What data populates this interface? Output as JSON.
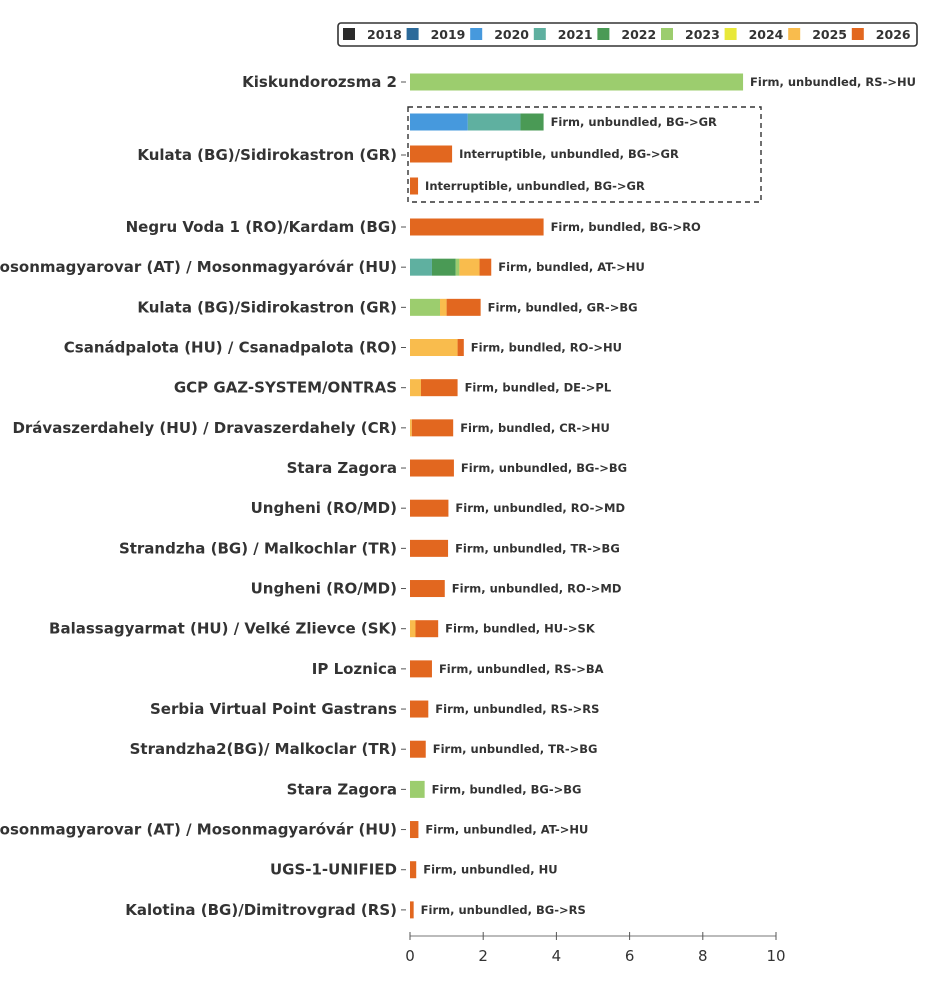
{
  "chart_data": {
    "type": "bar",
    "orientation": "horizontal",
    "stacked": true,
    "xlim": [
      0,
      10
    ],
    "x_ticks": [
      0,
      2,
      4,
      6,
      8,
      10
    ],
    "legend": {
      "placement": "top-right",
      "entries": [
        {
          "name": "2018",
          "color": "#2b2b2b"
        },
        {
          "name": "2019",
          "color": "#2c6a9a"
        },
        {
          "name": "2020",
          "color": "#4699dd"
        },
        {
          "name": "2021",
          "color": "#5fb0a0"
        },
        {
          "name": "2022",
          "color": "#4a9a55"
        },
        {
          "name": "2023",
          "color": "#9ccd6e"
        },
        {
          "name": "2024",
          "color": "#e8e83a"
        },
        {
          "name": "2025",
          "color": "#f9bc4d"
        },
        {
          "name": "2026",
          "color": "#e2671f"
        }
      ]
    },
    "categories": [
      {
        "label": "Kiskundorozsma 2",
        "bars": [
          {
            "label": "Firm, unbundled, RS->HU",
            "segments": [
              {
                "year": "2023",
                "value": 9.1
              }
            ]
          }
        ]
      },
      {
        "label": "Kulata (BG)/Sidirokastron (GR)",
        "boxed": true,
        "bars": [
          {
            "label": "Firm, unbundled, BG->GR",
            "segments": [
              {
                "year": "2020",
                "value": 1.58
              },
              {
                "year": "2021",
                "value": 1.44
              },
              {
                "year": "2022",
                "value": 0.63
              }
            ]
          },
          {
            "label": "Interruptible, unbundled, BG->GR",
            "segments": [
              {
                "year": "2026",
                "value": 1.15
              }
            ]
          },
          {
            "label": "Interruptible, unbundled, BG->GR",
            "segments": [
              {
                "year": "2026",
                "value": 0.22
              }
            ]
          }
        ]
      },
      {
        "label": "Negru Voda 1 (RO)/Kardam (BG)",
        "bars": [
          {
            "label": "Firm, bundled, BG->RO",
            "segments": [
              {
                "year": "2026",
                "value": 3.65
              }
            ]
          }
        ]
      },
      {
        "label": "Mosonmagyarovar (AT) / Mosonmagyaróvár (HU)",
        "bars": [
          {
            "label": "Firm, bundled, AT->HU",
            "segments": [
              {
                "year": "2021",
                "value": 0.6
              },
              {
                "year": "2022",
                "value": 0.65
              },
              {
                "year": "2023",
                "value": 0.1
              },
              {
                "year": "2025",
                "value": 0.55
              },
              {
                "year": "2026",
                "value": 0.32
              }
            ]
          }
        ]
      },
      {
        "label": "Kulata (BG)/Sidirokastron (GR)",
        "bars": [
          {
            "label": "Firm, bundled, GR->BG",
            "segments": [
              {
                "year": "2023",
                "value": 0.82
              },
              {
                "year": "2025",
                "value": 0.18
              },
              {
                "year": "2026",
                "value": 0.93
              }
            ]
          }
        ]
      },
      {
        "label": "Csanádpalota (HU) / Csanadpalota (RO)",
        "bars": [
          {
            "label": "Firm, bundled, RO->HU",
            "segments": [
              {
                "year": "2025",
                "value": 1.3
              },
              {
                "year": "2026",
                "value": 0.17
              }
            ]
          }
        ]
      },
      {
        "label": "GCP GAZ-SYSTEM/ONTRAS",
        "bars": [
          {
            "label": "Firm, bundled, DE->PL",
            "segments": [
              {
                "year": "2025",
                "value": 0.3
              },
              {
                "year": "2026",
                "value": 1.0
              }
            ]
          }
        ]
      },
      {
        "label": "Drávaszerdahely (HU) / Dravaszerdahely (CR)",
        "bars": [
          {
            "label": "Firm, bundled, CR->HU",
            "segments": [
              {
                "year": "2025",
                "value": 0.05
              },
              {
                "year": "2026",
                "value": 1.13
              }
            ]
          }
        ]
      },
      {
        "label": "Stara Zagora",
        "bars": [
          {
            "label": "Firm, unbundled, BG->BG",
            "segments": [
              {
                "year": "2026",
                "value": 1.2
              }
            ]
          }
        ]
      },
      {
        "label": "Ungheni (RO/MD)",
        "bars": [
          {
            "label": "Firm, unbundled, RO->MD",
            "segments": [
              {
                "year": "2026",
                "value": 1.05
              }
            ]
          }
        ]
      },
      {
        "label": "Strandzha (BG) / Malkochlar (TR)",
        "bars": [
          {
            "label": "Firm, unbundled, TR->BG",
            "segments": [
              {
                "year": "2026",
                "value": 1.04
              }
            ]
          }
        ]
      },
      {
        "label": "Ungheni (RO/MD)",
        "bars": [
          {
            "label": "Firm, unbundled, RO->MD",
            "segments": [
              {
                "year": "2026",
                "value": 0.95
              }
            ]
          }
        ]
      },
      {
        "label": "Balassagyarmat (HU) / Velké Zlievce (SK)",
        "bars": [
          {
            "label": "Firm, bundled, HU->SK",
            "segments": [
              {
                "year": "2025",
                "value": 0.15
              },
              {
                "year": "2026",
                "value": 0.62
              }
            ]
          }
        ]
      },
      {
        "label": "IP Loznica",
        "bars": [
          {
            "label": "Firm, unbundled, RS->BA",
            "segments": [
              {
                "year": "2026",
                "value": 0.6
              }
            ]
          }
        ]
      },
      {
        "label": "Serbia Virtual Point Gastrans",
        "bars": [
          {
            "label": "Firm, unbundled, RS->RS",
            "segments": [
              {
                "year": "2026",
                "value": 0.5
              }
            ]
          }
        ]
      },
      {
        "label": "Strandzha2(BG)/ Malkoclar (TR)",
        "bars": [
          {
            "label": "Firm, unbundled, TR->BG",
            "segments": [
              {
                "year": "2026",
                "value": 0.43
              }
            ]
          }
        ]
      },
      {
        "label": "Stara Zagora",
        "bars": [
          {
            "label": "Firm, bundled, BG->BG",
            "segments": [
              {
                "year": "2023",
                "value": 0.4
              }
            ]
          }
        ]
      },
      {
        "label": "Mosonmagyarovar (AT) / Mosonmagyaróvár (HU)",
        "bars": [
          {
            "label": "Firm, unbundled, AT->HU",
            "segments": [
              {
                "year": "2026",
                "value": 0.23
              }
            ]
          }
        ]
      },
      {
        "label": "UGS-1-UNIFIED",
        "bars": [
          {
            "label": "Firm, unbundled, HU",
            "segments": [
              {
                "year": "2026",
                "value": 0.17
              }
            ]
          }
        ]
      },
      {
        "label": "Kalotina (BG)/Dimitrovgrad (RS)",
        "bars": [
          {
            "label": "Firm, unbundled, BG->RS",
            "segments": [
              {
                "year": "2026",
                "value": 0.1
              }
            ]
          }
        ]
      }
    ]
  }
}
